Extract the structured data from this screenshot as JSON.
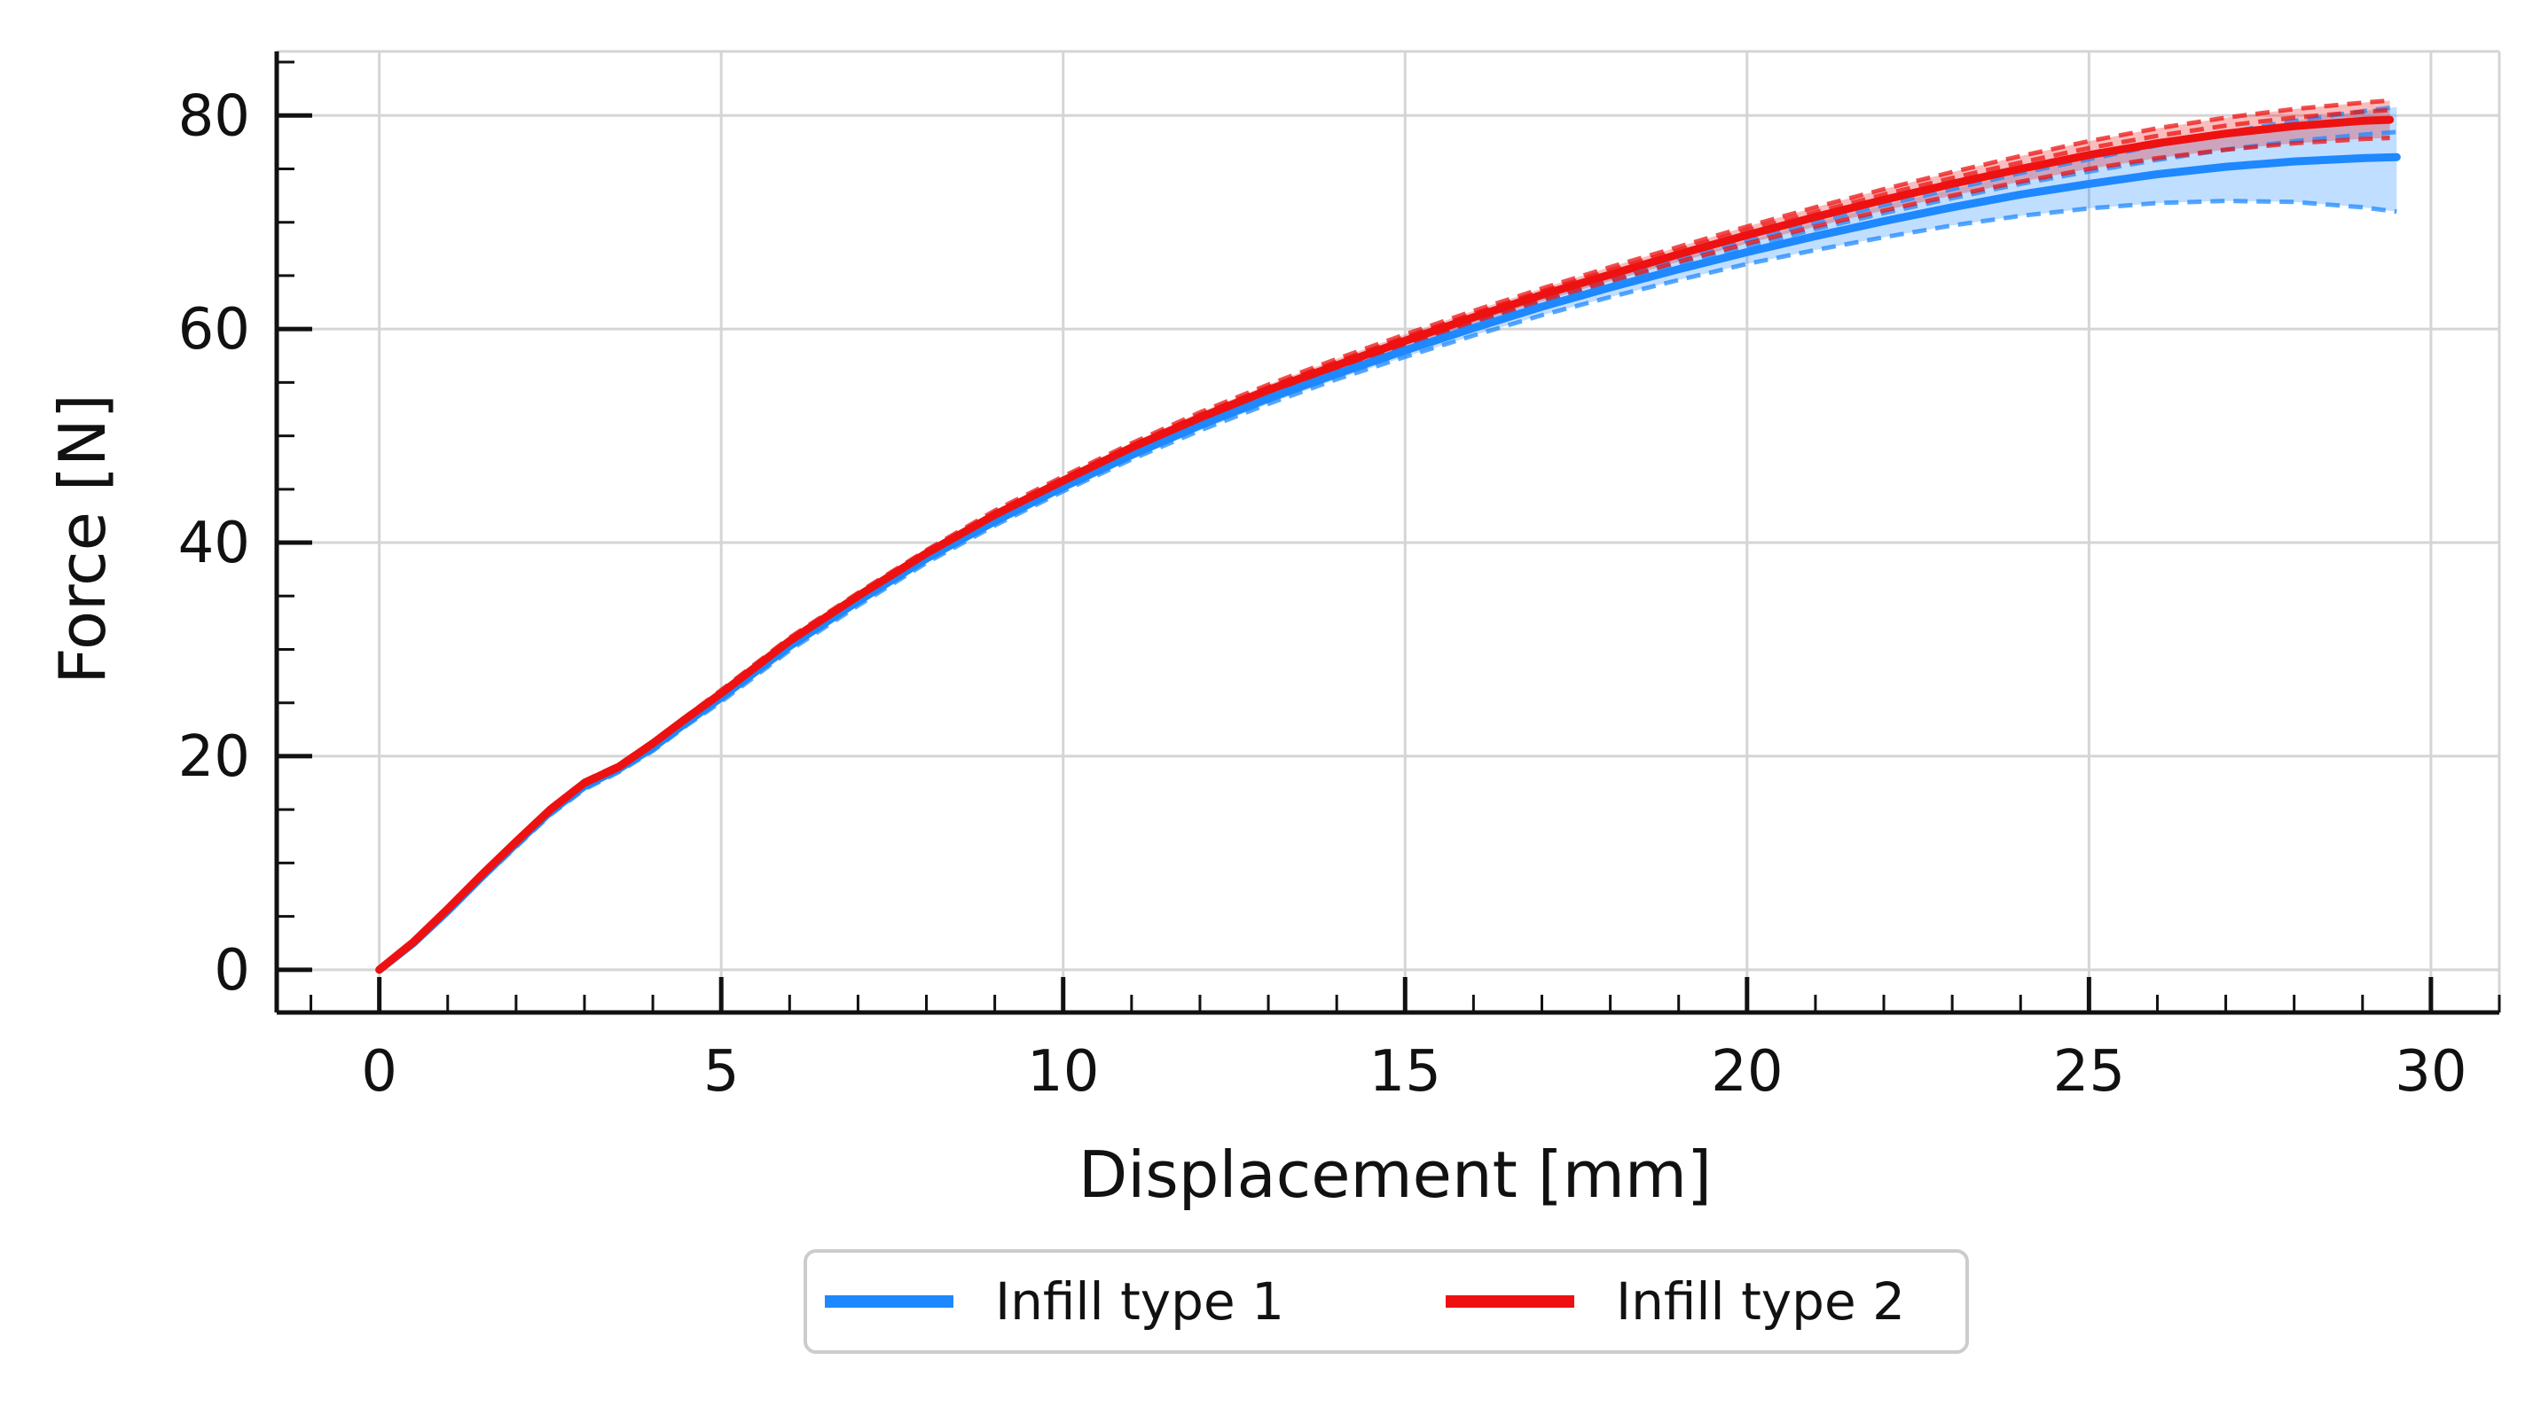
{
  "chart_data": {
    "type": "line",
    "title": "",
    "xlabel": "Displacement [mm]",
    "ylabel": "Force [N]",
    "xlim": [
      -1.5,
      31
    ],
    "ylim": [
      -4,
      86
    ],
    "xticks": [
      0,
      5,
      10,
      15,
      20,
      25,
      30
    ],
    "xtick_labels": [
      "0",
      "5",
      "10",
      "15",
      "20",
      "25",
      "30"
    ],
    "yticks": [
      0,
      20,
      40,
      60,
      80
    ],
    "ytick_labels": [
      "0",
      "20",
      "40",
      "60",
      "80"
    ],
    "grid": true,
    "legend_placement": "bottom-center",
    "series": [
      {
        "name": "Infill type 1",
        "color": "#1e88ff",
        "x": [
          0,
          0.5,
          1,
          1.5,
          2,
          2.5,
          3,
          3.5,
          4,
          4.5,
          5,
          6,
          7,
          8,
          9,
          10,
          11,
          12,
          13,
          14,
          15,
          16,
          17,
          18,
          19,
          20,
          21,
          22,
          23,
          24,
          25,
          26,
          27,
          28,
          29,
          29.5
        ],
        "values": [
          0,
          2.5,
          5.5,
          8.7,
          11.8,
          14.8,
          17.2,
          18.8,
          20.8,
          23.2,
          25.5,
          30.3,
          34.5,
          38.5,
          42.0,
          45.2,
          48.2,
          51.0,
          53.5,
          55.8,
          58.0,
          60.1,
          62.1,
          63.9,
          65.6,
          67.2,
          68.7,
          70.1,
          71.4,
          72.6,
          73.6,
          74.5,
          75.2,
          75.7,
          76.0,
          76.1
        ],
        "lower_band": [
          0,
          2.4,
          5.3,
          8.5,
          11.5,
          14.5,
          16.9,
          18.5,
          20.5,
          22.9,
          25.1,
          29.9,
          34.1,
          38.1,
          41.6,
          44.8,
          47.8,
          50.5,
          53.0,
          55.3,
          57.4,
          59.4,
          61.3,
          63.0,
          64.6,
          66.1,
          67.4,
          68.6,
          69.7,
          70.6,
          71.3,
          71.8,
          72.0,
          71.9,
          71.4,
          71.0
        ],
        "upper_band": [
          0,
          2.6,
          5.7,
          8.9,
          12.1,
          15.1,
          17.5,
          19.1,
          21.1,
          23.5,
          25.9,
          30.7,
          34.9,
          38.9,
          42.4,
          45.6,
          48.6,
          51.5,
          54.0,
          56.3,
          58.6,
          60.8,
          62.9,
          64.8,
          66.6,
          68.3,
          70.0,
          71.6,
          73.1,
          74.6,
          75.9,
          77.2,
          78.4,
          79.5,
          80.4,
          80.8
        ]
      },
      {
        "name": "Infill type 2",
        "color": "#ee1111",
        "x": [
          0,
          0.5,
          1,
          1.5,
          2,
          2.5,
          3,
          3.5,
          4,
          4.5,
          5,
          6,
          7,
          8,
          9,
          10,
          11,
          12,
          13,
          14,
          15,
          16,
          17,
          18,
          19,
          20,
          21,
          22,
          23,
          24,
          25,
          26,
          27,
          28,
          29,
          29.4
        ],
        "values": [
          0,
          2.6,
          5.7,
          8.9,
          12.0,
          15.0,
          17.5,
          19.0,
          21.2,
          23.6,
          25.9,
          30.8,
          35.0,
          39.0,
          42.6,
          45.8,
          48.9,
          51.7,
          54.3,
          56.6,
          58.9,
          61.1,
          63.2,
          65.1,
          67.0,
          68.8,
          70.5,
          72.1,
          73.6,
          75.0,
          76.3,
          77.4,
          78.3,
          79.0,
          79.5,
          79.6
        ],
        "lower_band": [
          0,
          2.5,
          5.5,
          8.7,
          11.8,
          14.8,
          17.3,
          18.8,
          21.0,
          23.4,
          25.6,
          30.5,
          34.7,
          38.7,
          42.2,
          45.4,
          48.5,
          51.3,
          53.8,
          56.1,
          58.4,
          60.5,
          62.6,
          64.5,
          66.3,
          68.0,
          69.6,
          71.1,
          72.5,
          73.8,
          75.0,
          76.0,
          76.8,
          77.4,
          77.8,
          77.9
        ],
        "upper_band": [
          0,
          2.7,
          5.9,
          9.1,
          12.2,
          15.2,
          17.7,
          19.2,
          21.4,
          23.8,
          26.2,
          31.1,
          35.3,
          39.3,
          43.0,
          46.2,
          49.3,
          52.2,
          54.8,
          57.2,
          59.5,
          61.7,
          63.8,
          65.8,
          67.7,
          69.6,
          71.4,
          73.1,
          74.7,
          76.2,
          77.6,
          78.8,
          79.8,
          80.6,
          81.2,
          81.4
        ]
      }
    ]
  }
}
